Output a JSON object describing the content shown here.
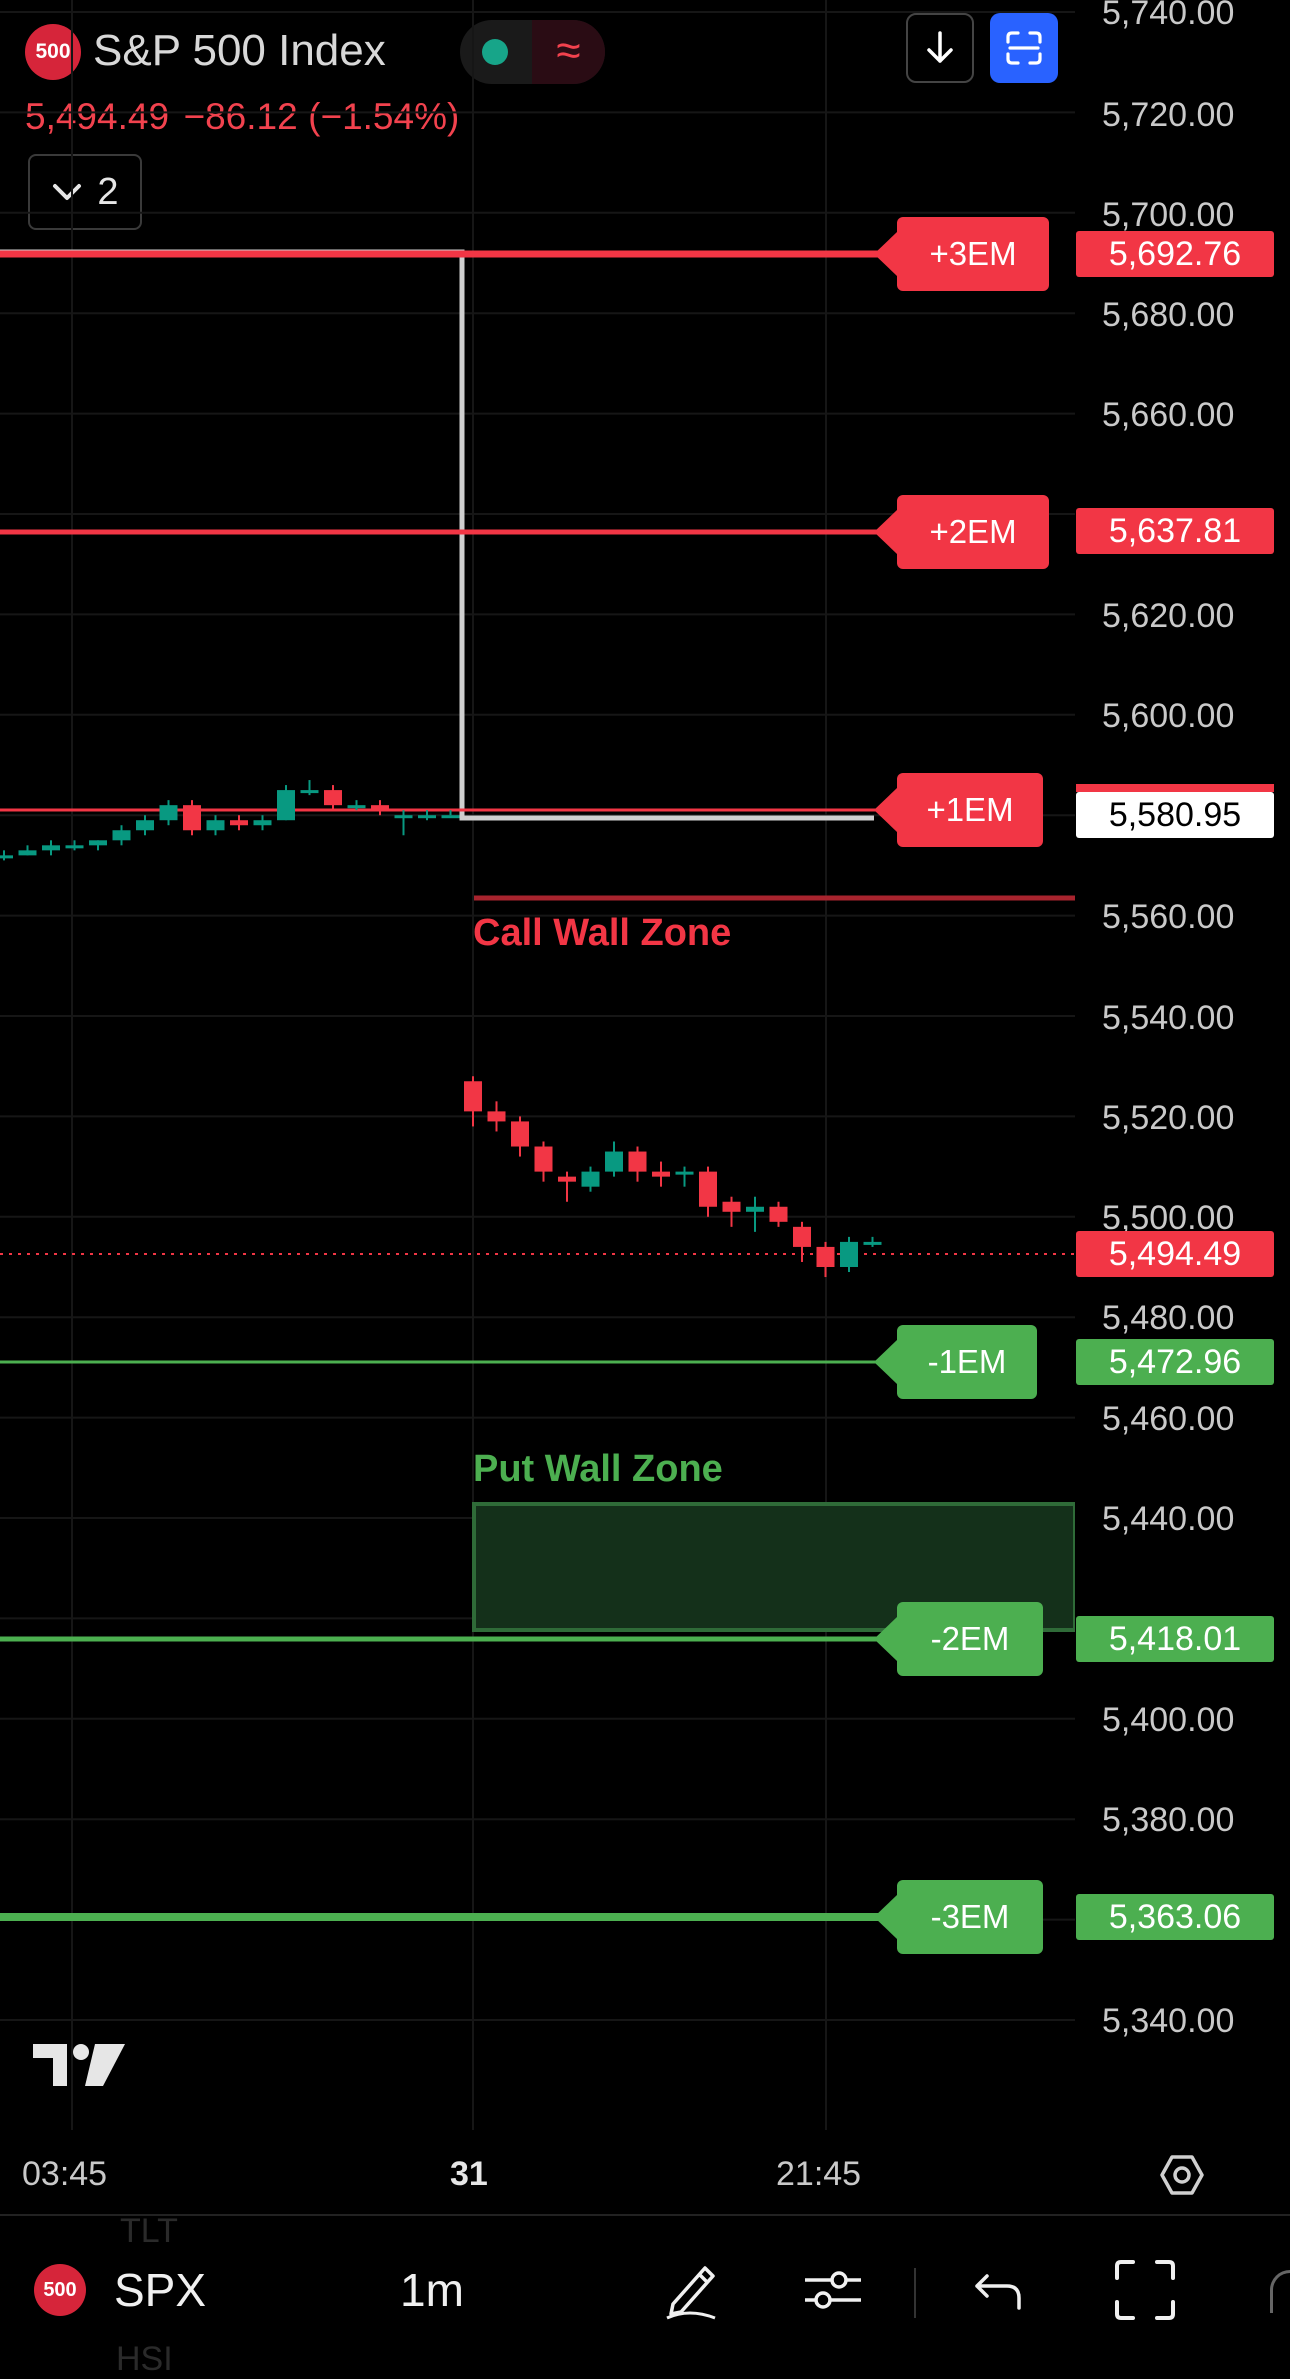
{
  "header": {
    "symbol_badge": "500",
    "title": "S&P 500 Index",
    "last_price": "5,494.49",
    "change": "−86.12",
    "change_pct": "(−1.54%)",
    "indicators_count": "2",
    "wave_glyph": "≈"
  },
  "price_axis": {
    "ticks": [
      "5,740.00",
      "5,720.00",
      "5,700.00",
      "5,680.00",
      "5,660.00",
      "5,620.00",
      "5,600.00",
      "5,560.00",
      "5,540.00",
      "5,520.00",
      "5,500.00",
      "5,480.00",
      "5,460.00",
      "5,440.00",
      "5,400.00",
      "5,380.00",
      "5,340.00"
    ],
    "labels": {
      "plus3": "5,692.76",
      "plus2": "5,637.81",
      "current_line": "5,580.95",
      "last": "5,494.49",
      "minus1": "5,472.96",
      "minus2": "5,418.01",
      "minus3": "5,363.06"
    }
  },
  "levels": {
    "plus3": "+3EM",
    "plus2": "+2EM",
    "plus1": "+1EM",
    "minus1": "-1EM",
    "minus2": "-2EM",
    "minus3": "-3EM"
  },
  "zones": {
    "call": "Call Wall Zone",
    "put": "Put Wall Zone"
  },
  "time_axis": {
    "t1": "03:45",
    "t2": "31",
    "t3": "21:45"
  },
  "watermark": "TV",
  "bottom_bar": {
    "symbol_badge": "500",
    "symbol": "SPX",
    "interval": "1m",
    "ghost_top": "TLT",
    "ghost_bottom": "HSI"
  },
  "colors": {
    "red": "#f23645",
    "green": "#4caf50",
    "up_candle": "#089981",
    "down_candle": "#f23645",
    "accent_blue": "#2962ff"
  },
  "chart_data": {
    "type": "candlestick",
    "series": [
      {
        "name": "S&P 500 Index",
        "values": [
          [
            5572,
            5573,
            5571,
            5572
          ],
          [
            5572,
            5574,
            5572,
            5573
          ],
          [
            5573,
            5575,
            5572,
            5574
          ],
          [
            5574,
            5575,
            5573,
            5574
          ],
          [
            5574,
            5575,
            5573,
            5575
          ],
          [
            5575,
            5578,
            5574,
            5577
          ],
          [
            5577,
            5580,
            5576,
            5579
          ],
          [
            5579,
            5583,
            5578,
            5582
          ],
          [
            5582,
            5583,
            5576,
            5577
          ],
          [
            5577,
            5580,
            5576,
            5579
          ],
          [
            5579,
            5580,
            5577,
            5578
          ],
          [
            5578,
            5580,
            5577,
            5579
          ],
          [
            5579,
            5586,
            5579,
            5585
          ],
          [
            5585,
            5587,
            5584,
            5585
          ],
          [
            5585,
            5586,
            5581,
            5582
          ],
          [
            5582,
            5583,
            5581,
            5582
          ],
          [
            5582,
            5583,
            5580,
            5581
          ],
          [
            5580,
            5581,
            5576,
            5580
          ],
          [
            5580,
            5581,
            5579,
            5580
          ],
          [
            5580,
            5581,
            5580,
            5580
          ],
          [
            5527,
            5528,
            5518,
            5521
          ],
          [
            5521,
            5523,
            5517,
            5519
          ],
          [
            5519,
            5520,
            5512,
            5514
          ],
          [
            5514,
            5515,
            5507,
            5509
          ],
          [
            5508,
            5509,
            5503,
            5507
          ],
          [
            5506,
            5510,
            5505,
            5509
          ],
          [
            5509,
            5515,
            5508,
            5513
          ],
          [
            5513,
            5514,
            5507,
            5509
          ],
          [
            5509,
            5511,
            5506,
            5508
          ],
          [
            5509,
            5510,
            5506,
            5509
          ],
          [
            5509,
            5510,
            5500,
            5502
          ],
          [
            5503,
            5504,
            5498,
            5501
          ],
          [
            5501,
            5504,
            5497,
            5502
          ],
          [
            5502,
            5503,
            5498,
            5499
          ],
          [
            5498,
            5499,
            5491,
            5494
          ],
          [
            5494,
            5495,
            5488,
            5490
          ],
          [
            5490,
            5496,
            5489,
            5495
          ],
          [
            5495,
            5496,
            5494,
            5495
          ]
        ]
      }
    ],
    "ylim": [
      5330,
      5745
    ]
  }
}
